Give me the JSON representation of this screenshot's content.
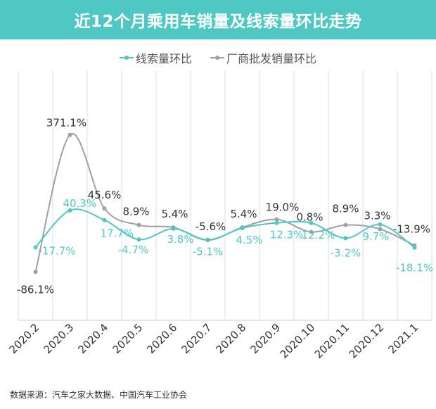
{
  "chart_data": {
    "type": "line",
    "title": "近12个月乘用车销量及线索量环比走势",
    "categories": [
      "2020.2",
      "2020.3",
      "2020.4",
      "2020.5",
      "2020.6",
      "2020.7",
      "2020.8",
      "2020.9",
      "2020.10",
      "2020.11",
      "2020.12",
      "2021.1"
    ],
    "series": [
      {
        "name": "线索量环比",
        "color": "#4fc8c4",
        "values": [
          -17.7,
          40.3,
          17.7,
          -4.7,
          3.8,
          -5.1,
          4.5,
          12.3,
          12.2,
          -3.2,
          9.7,
          -18.1
        ],
        "labels": [
          "-17.7%",
          "40.3%",
          "17.7%",
          "-4.7%",
          "3.8%",
          "-5.1%",
          "4.5%",
          "12.3%",
          "12.2%",
          "-3.2%",
          "9.7%",
          "-18.1%"
        ]
      },
      {
        "name": "厂商批发销量环比",
        "color": "#a0a0a0",
        "values": [
          -86.1,
          371.1,
          45.6,
          8.9,
          5.4,
          -5.6,
          5.4,
          19.0,
          0.8,
          8.9,
          3.3,
          -13.9
        ],
        "labels": [
          "-86.1%",
          "371.1%",
          "45.6%",
          "8.9%",
          "5.4%",
          "-5.6%",
          "5.4%",
          "19.0%",
          "0.8%",
          "8.9%",
          "3.3%",
          "-13.9%"
        ]
      }
    ],
    "grid": "vertical",
    "legend": "top-center",
    "smooth": true
  },
  "source": "数据来源：汽车之家大数据、中国汽车工业协会"
}
